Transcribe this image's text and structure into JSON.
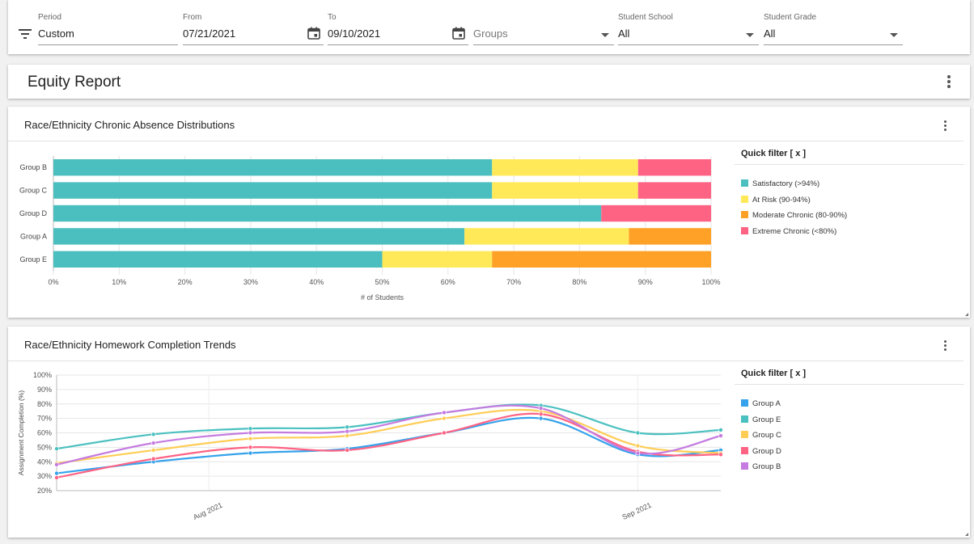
{
  "filters": {
    "period": {
      "label": "Period",
      "value": "Custom"
    },
    "from": {
      "label": "From",
      "value": "07/21/2021"
    },
    "to": {
      "label": "To",
      "value": "09/10/2021"
    },
    "groups": {
      "placeholder": "Groups"
    },
    "school": {
      "label": "Student School",
      "value": "All"
    },
    "grade": {
      "label": "Student Grade",
      "value": "All"
    }
  },
  "page": {
    "title": "Equity Report"
  },
  "absence_card": {
    "title": "Race/Ethnicity Chronic Absence Distributions",
    "quick_filter": "Quick filter [ x ]"
  },
  "homework_card": {
    "title": "Race/Ethnicity Homework Completion Trends",
    "quick_filter": "Quick filter [ x ]"
  },
  "chart_data": [
    {
      "type": "bar",
      "orientation": "horizontal",
      "stacked": true,
      "percent_stacked": true,
      "title": "Race/Ethnicity Chronic Absence Distributions",
      "xlabel": "# of Students",
      "ylabel": "",
      "xlim": [
        0,
        100
      ],
      "xticks": [
        "0%",
        "10%",
        "20%",
        "30%",
        "40%",
        "50%",
        "60%",
        "70%",
        "80%",
        "90%",
        "100%"
      ],
      "categories": [
        "Group B",
        "Group C",
        "Group D",
        "Group A",
        "Group E"
      ],
      "series": [
        {
          "name": "Satisfactory (>94%)",
          "color": "#4bbfbf",
          "values": [
            66.7,
            66.7,
            83.3,
            62.5,
            50
          ]
        },
        {
          "name": "At Risk (90-94%)",
          "color": "#ffe959",
          "values": [
            22.2,
            22.2,
            0,
            25,
            16.7
          ]
        },
        {
          "name": "Moderate Chronic (80-90%)",
          "color": "#ffa126",
          "values": [
            0,
            0,
            0,
            12.5,
            33.3
          ]
        },
        {
          "name": "Extreme Chronic (<80%)",
          "color": "#ff6384",
          "values": [
            11.1,
            11.1,
            16.7,
            0,
            0
          ]
        }
      ],
      "grid": true,
      "legend": "right"
    },
    {
      "type": "line",
      "smooth": true,
      "title": "Race/Ethnicity Homework Completion Trends",
      "ylabel": "Assignment Completion (%)",
      "xlabel": "",
      "ylim": [
        20,
        100
      ],
      "yticks": [
        "20%",
        "30%",
        "40%",
        "50%",
        "60%",
        "70%",
        "80%",
        "90%",
        "100%"
      ],
      "x": [
        "2021-07-21",
        "2021-07-28",
        "2021-08-04",
        "2021-08-11",
        "2021-08-18",
        "2021-08-25",
        "2021-09-01",
        "2021-09-07"
      ],
      "x_tick_labels": [
        "Aug 2021",
        "Sep 2021"
      ],
      "series": [
        {
          "name": "Group A",
          "color": "#36a2eb",
          "values": [
            32,
            40,
            46,
            49,
            60,
            70,
            45,
            48
          ]
        },
        {
          "name": "Group E",
          "color": "#4bc0c0",
          "values": [
            49,
            59,
            63,
            64,
            74,
            79,
            60,
            62
          ]
        },
        {
          "name": "Group C",
          "color": "#ffcd56",
          "values": [
            39,
            48,
            56,
            58,
            70,
            75,
            51,
            46
          ]
        },
        {
          "name": "Group D",
          "color": "#ff6384",
          "values": [
            29,
            42,
            50,
            48,
            60,
            73,
            47,
            45
          ]
        },
        {
          "name": "Group B",
          "color": "#c57be0",
          "values": [
            38,
            53,
            60,
            61,
            74,
            77,
            46,
            58
          ]
        }
      ],
      "grid": true,
      "legend": "right"
    }
  ]
}
